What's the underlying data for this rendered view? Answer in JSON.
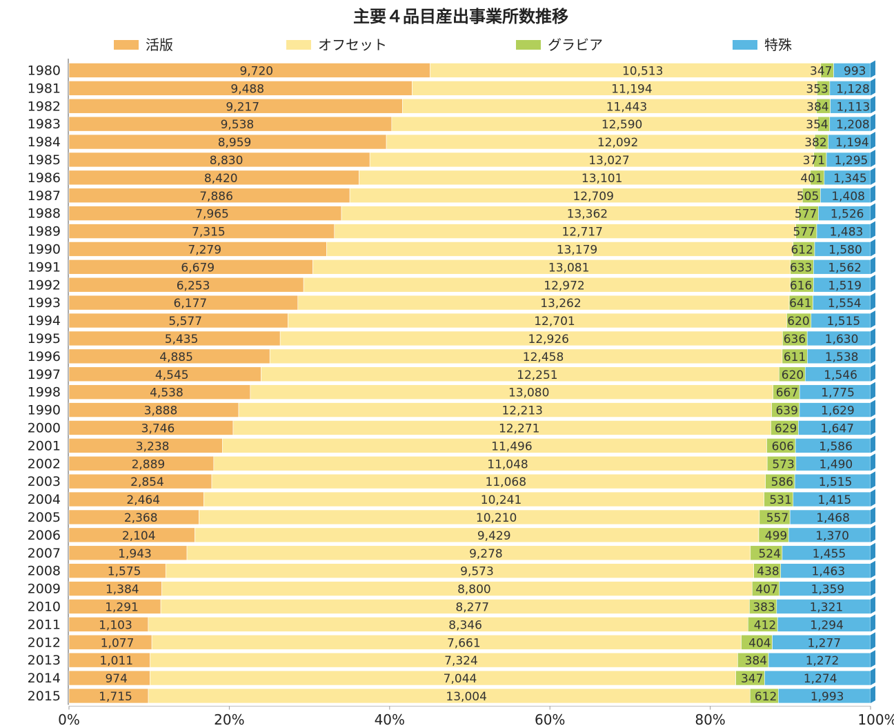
{
  "chart_data": {
    "type": "bar",
    "orientation": "horizontal",
    "stacked": "percent",
    "title": "主要４品目産出事業所数推移",
    "legend_position": "top",
    "categories": [
      "1980",
      "1981",
      "1982",
      "1983",
      "1984",
      "1985",
      "1986",
      "1987",
      "1988",
      "1989",
      "1990",
      "1991",
      "1992",
      "1993",
      "1994",
      "1995",
      "1996",
      "1997",
      "1998",
      "1990",
      "2000",
      "2001",
      "2002",
      "2003",
      "2004",
      "2005",
      "2006",
      "2007",
      "2008",
      "2009",
      "2010",
      "2011",
      "2012",
      "2013",
      "2014",
      "2015"
    ],
    "series": [
      {
        "name": "活版",
        "color": "#f5b865",
        "values": [
          9720,
          9488,
          9217,
          9538,
          8959,
          8830,
          8420,
          7886,
          7965,
          7315,
          7279,
          6679,
          6253,
          6177,
          5577,
          5435,
          4885,
          4545,
          4538,
          3888,
          3746,
          3238,
          2889,
          2854,
          2464,
          2368,
          2104,
          1943,
          1575,
          1384,
          1291,
          1103,
          1077,
          1011,
          974,
          1715
        ],
        "labels": [
          "9,720",
          "9,488",
          "9,217",
          "9,538",
          "8,959",
          "8,830",
          "8,420",
          "7,886",
          "7,965",
          "7,315",
          "7,279",
          "6,679",
          "6,253",
          "6,177",
          "5,577",
          "5,435",
          "4,885",
          "4,545",
          "4,538",
          "3,888",
          "3,746",
          "3,238",
          "2,889",
          "2,854",
          "2,464",
          "2,368",
          "2,104",
          "1,943",
          "1,575",
          "1,384",
          "1,291",
          "1,103",
          "1,077",
          "1,011",
          "974",
          "1,715"
        ]
      },
      {
        "name": "オフセット",
        "color": "#fde89a",
        "values": [
          10513,
          11194,
          11443,
          12590,
          12092,
          13027,
          13101,
          12709,
          13362,
          12717,
          13179,
          13081,
          12972,
          13262,
          12701,
          12926,
          12458,
          12251,
          13080,
          12213,
          12271,
          11496,
          11048,
          11068,
          10241,
          10210,
          9429,
          9278,
          9573,
          8800,
          8277,
          8346,
          7661,
          7324,
          7044,
          13004
        ],
        "labels": [
          "10,513",
          "11,194",
          "11,443",
          "12,590",
          "12,092",
          "13,027",
          "13,101",
          "12,709",
          "13,362",
          "12,717",
          "13,179",
          "13,081",
          "12,972",
          "13,262",
          "12,701",
          "12,926",
          "12,458",
          "12,251",
          "13,080",
          "12,213",
          "12,271",
          "11,496",
          "11,048",
          "11,068",
          "10,241",
          "10,210",
          "9,429",
          "9,278",
          "9,573",
          "8,800",
          "8,277",
          "8,346",
          "7,661",
          "7,324",
          "7,044",
          "13,004"
        ]
      },
      {
        "name": "グラビア",
        "color": "#b2cf5a",
        "values": [
          347,
          353,
          384,
          354,
          382,
          371,
          401,
          505,
          577,
          577,
          612,
          633,
          616,
          641,
          620,
          636,
          611,
          620,
          667,
          639,
          629,
          606,
          573,
          586,
          531,
          557,
          499,
          524,
          438,
          407,
          383,
          412,
          404,
          384,
          347,
          612
        ],
        "labels": [
          "347",
          "353",
          "384",
          "354",
          "382",
          "371",
          "401",
          "505",
          "577",
          "577",
          "612",
          "633",
          "616",
          "641",
          "620",
          "636",
          "611",
          "620",
          "667",
          "639",
          "629",
          "606",
          "573",
          "586",
          "531",
          "557",
          "499",
          "524",
          "438",
          "407",
          "383",
          "412",
          "404",
          "384",
          "347",
          "612"
        ]
      },
      {
        "name": "特殊",
        "color": "#5ab8e3",
        "values": [
          993,
          1128,
          1113,
          1208,
          1194,
          1295,
          1345,
          1408,
          1526,
          1483,
          1580,
          1562,
          1519,
          1554,
          1515,
          1630,
          1538,
          1546,
          1775,
          1629,
          1647,
          1586,
          1490,
          1515,
          1415,
          1468,
          1370,
          1455,
          1463,
          1359,
          1321,
          1294,
          1277,
          1272,
          1274,
          1993
        ],
        "labels": [
          "993",
          "1,128",
          "1,113",
          "1,208",
          "1,194",
          "1,295",
          "1,345",
          "1,408",
          "1,526",
          "1,483",
          "1,580",
          "1,562",
          "1,519",
          "1,554",
          "1,515",
          "1,630",
          "1,538",
          "1,546",
          "1,775",
          "1,629",
          "1,647",
          "1,586",
          "1,490",
          "1,515",
          "1,415",
          "1,468",
          "1,370",
          "1,455",
          "1,463",
          "1,359",
          "1,321",
          "1,294",
          "1,277",
          "1,272",
          "1,274",
          "1,993"
        ]
      }
    ],
    "x_axis": {
      "range": [
        0,
        100
      ],
      "unit": "%",
      "ticks": [
        "0%",
        "20%",
        "40%",
        "60%",
        "80%",
        "100%"
      ]
    },
    "grid": false
  }
}
